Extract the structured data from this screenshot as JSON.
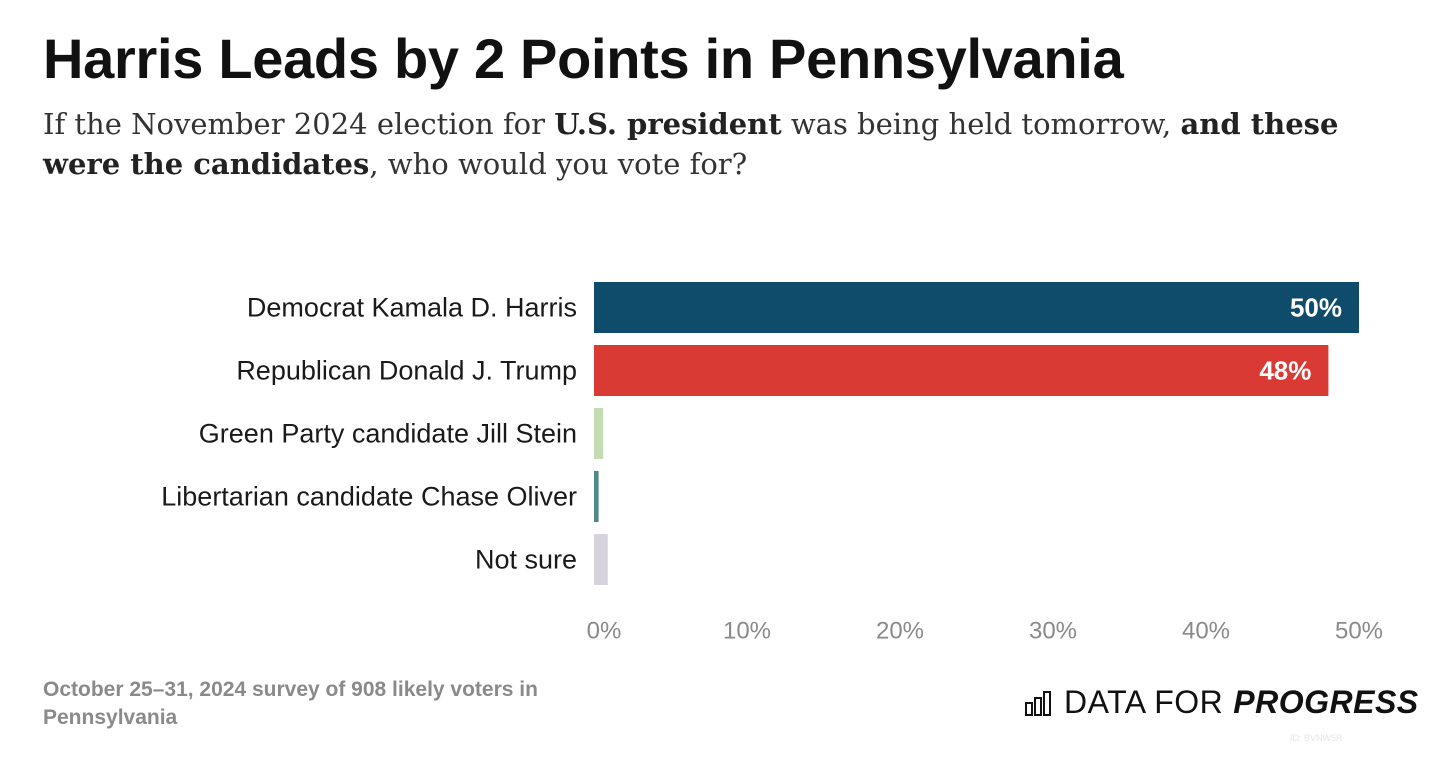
{
  "header": {
    "title": "Harris Leads by 2 Points in Pennsylvania",
    "subtitle_parts": [
      {
        "text": "If the November 2024 election for ",
        "bold": false
      },
      {
        "text": "U.S. president",
        "bold": true
      },
      {
        "text": " was being held tomorrow, ",
        "bold": false
      },
      {
        "text": "and these were the candidates",
        "bold": true
      },
      {
        "text": ", who would you vote for?",
        "bold": false
      }
    ]
  },
  "chart_data": {
    "type": "bar",
    "orientation": "horizontal",
    "categories": [
      "Democrat Kamala D. Harris",
      "Republican Donald J. Trump",
      "Green Party candidate Jill Stein",
      "Libertarian candidate Chase Oliver",
      "Not sure"
    ],
    "values": [
      50,
      48,
      0.6,
      0.3,
      0.9
    ],
    "data_labels": [
      "50%",
      "48%",
      "",
      "",
      ""
    ],
    "colors": [
      "#0f4c6b",
      "#d93a34",
      "#c3dcb3",
      "#4e8a8b",
      "#d6d3dc"
    ],
    "xlim": [
      0,
      50
    ],
    "xticks": [
      0,
      10,
      20,
      30,
      40,
      50
    ],
    "xtick_labels": [
      "0%",
      "10%",
      "20%",
      "30%",
      "40%",
      "50%"
    ],
    "grid": false,
    "legend": "none"
  },
  "footer": {
    "note": "October 25–31, 2024 survey of 908 likely voters in Pennsylvania",
    "logo_regular": "DATA FOR",
    "logo_bold": "PROGRESS",
    "chart_id": "ID: BVNW5R"
  },
  "colors": {
    "title": "#111111",
    "subtitle": "#333333",
    "axis_label": "#8a8a8a",
    "category_label": "#1a1a1a"
  }
}
